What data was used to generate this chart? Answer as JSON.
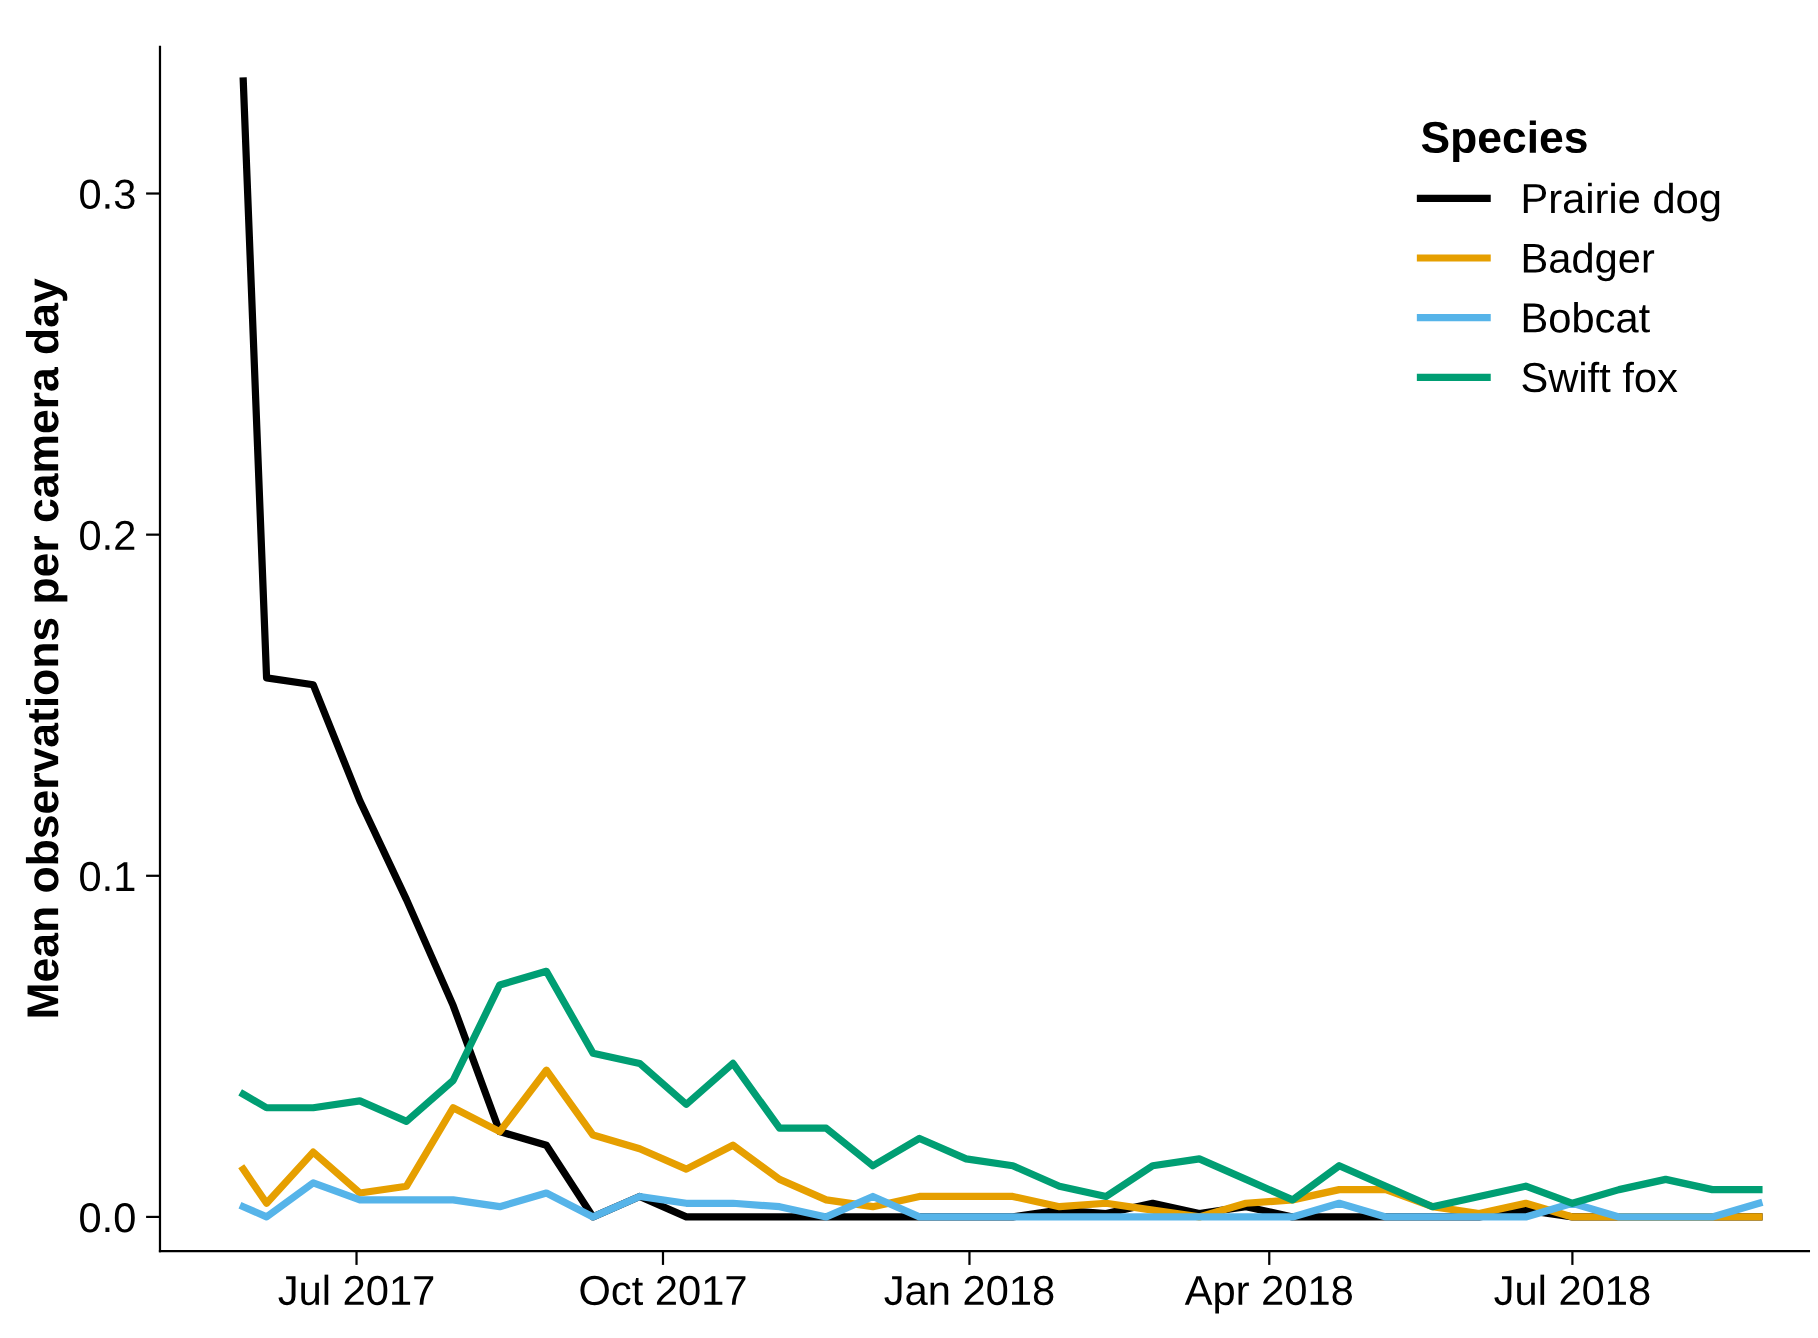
{
  "chart_data": {
    "type": "line",
    "ylabel": "Mean observations per camera day",
    "legend_title": "Species",
    "legend": "top right",
    "grid": false,
    "line_style": "solid",
    "x": [
      "2017-05-28",
      "2017-06-04",
      "2017-06-18",
      "2017-07-02",
      "2017-07-16",
      "2017-07-30",
      "2017-08-13",
      "2017-08-27",
      "2017-09-10",
      "2017-09-24",
      "2017-10-08",
      "2017-10-22",
      "2017-11-05",
      "2017-11-19",
      "2017-12-03",
      "2017-12-17",
      "2017-12-31",
      "2018-01-14",
      "2018-01-28",
      "2018-02-11",
      "2018-02-25",
      "2018-03-11",
      "2018-03-25",
      "2018-04-08",
      "2018-04-22",
      "2018-05-06",
      "2018-05-20",
      "2018-06-03",
      "2018-06-17",
      "2018-07-01",
      "2018-07-15",
      "2018-07-29",
      "2018-08-12",
      "2018-08-26"
    ],
    "xlim": [
      "2017-05-03",
      "2018-09-10"
    ],
    "xticks": [
      {
        "value": "2017-07-01",
        "label": "Jul 2017"
      },
      {
        "value": "2017-10-01",
        "label": "Oct 2017"
      },
      {
        "value": "2018-01-01",
        "label": "Jan 2018"
      },
      {
        "value": "2018-04-01",
        "label": "Apr 2018"
      },
      {
        "value": "2018-07-01",
        "label": "Jul 2018"
      }
    ],
    "ylim": [
      -0.01,
      0.343
    ],
    "yticks": [
      {
        "value": 0,
        "label": "0.0"
      },
      {
        "value": 0.1,
        "label": "0.1"
      },
      {
        "value": 0.2,
        "label": "0.2"
      },
      {
        "value": 0.3,
        "label": "0.3"
      }
    ],
    "series": [
      {
        "name": "Prairie dog",
        "color": "#000000",
        "values": [
          0.333,
          0.158,
          0.156,
          0.122,
          0.093,
          0.062,
          0.025,
          0.021,
          0,
          0.006,
          0,
          0,
          0,
          0,
          0,
          0,
          0,
          0,
          0.002,
          0.001,
          0.004,
          0.001,
          0.003,
          0,
          0,
          0,
          0,
          0,
          0.002,
          0,
          0,
          0,
          0,
          0
        ]
      },
      {
        "name": "Badger",
        "color": "#e69f00",
        "values": [
          0.014,
          0.004,
          0.019,
          0.007,
          0.009,
          0.032,
          0.025,
          0.043,
          0.024,
          0.02,
          0.014,
          0.021,
          0.011,
          0.005,
          0.003,
          0.006,
          0.006,
          0.006,
          0.003,
          0.004,
          0.002,
          0,
          0.004,
          0.005,
          0.008,
          0.008,
          0.003,
          0.001,
          0.004,
          0,
          0,
          0,
          0,
          0
        ]
      },
      {
        "name": "Bobcat",
        "color": "#56b4e9",
        "values": [
          0.003,
          0,
          0.01,
          0.005,
          0.005,
          0.005,
          0.003,
          0.007,
          0,
          0.006,
          0.004,
          0.004,
          0.003,
          0,
          0.006,
          0,
          0,
          0,
          0,
          0,
          0,
          0,
          0,
          0,
          0.004,
          0,
          0,
          0,
          0,
          0.004,
          0,
          0,
          0,
          0.004
        ]
      },
      {
        "name": "Swift fox",
        "color": "#009e73",
        "values": [
          0.036,
          0.032,
          0.032,
          0.034,
          0.028,
          0.04,
          0.068,
          0.072,
          0.048,
          0.045,
          0.033,
          0.045,
          0.026,
          0.026,
          0.015,
          0.023,
          0.017,
          0.015,
          0.009,
          0.006,
          0.015,
          0.017,
          0.011,
          0.005,
          0.015,
          0.009,
          0.003,
          0.006,
          0.009,
          0.004,
          0.008,
          0.011,
          0.008,
          0.008
        ]
      }
    ]
  }
}
